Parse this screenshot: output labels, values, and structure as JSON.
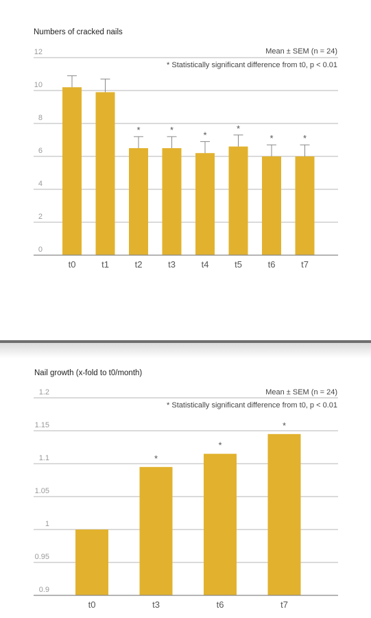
{
  "chart_data": [
    {
      "type": "bar",
      "title": "Numbers of cracked nails",
      "legend_text": "Mean ± SEM (n = 24)",
      "significance_note": "* Statistically significant difference from t0, p < 0.01",
      "categories": [
        "t0",
        "t1",
        "t2",
        "t3",
        "t4",
        "t5",
        "t6",
        "t7"
      ],
      "values": [
        10.2,
        9.9,
        6.5,
        6.5,
        6.2,
        6.6,
        6.0,
        6.0
      ],
      "sem": [
        0.7,
        0.8,
        0.7,
        0.7,
        0.7,
        0.7,
        0.7,
        0.7
      ],
      "significant": [
        false,
        false,
        true,
        true,
        true,
        true,
        true,
        true
      ],
      "ylim": [
        0,
        12
      ],
      "yticks": [
        "0",
        "2",
        "4",
        "6",
        "8",
        "10",
        "12"
      ],
      "grid": true,
      "bar_color": "#E2B22E"
    },
    {
      "type": "bar",
      "title": "Nail growth",
      "title_suffix": "(x-fold to t0/month)",
      "legend_text": "Mean ± SEM (n = 24)",
      "significance_note": "* Statistically significant difference from t0, p < 0.01",
      "categories": [
        "t0",
        "t3",
        "t6",
        "t7"
      ],
      "values": [
        1.0,
        1.095,
        1.115,
        1.145
      ],
      "significant": [
        false,
        true,
        true,
        true
      ],
      "ylim": [
        0.9,
        1.2
      ],
      "yticks": [
        "0.9",
        "0.95",
        "1",
        "1.05",
        "1.1",
        "1.15",
        "1.2"
      ],
      "grid": true,
      "bar_color": "#E2B22E"
    }
  ]
}
